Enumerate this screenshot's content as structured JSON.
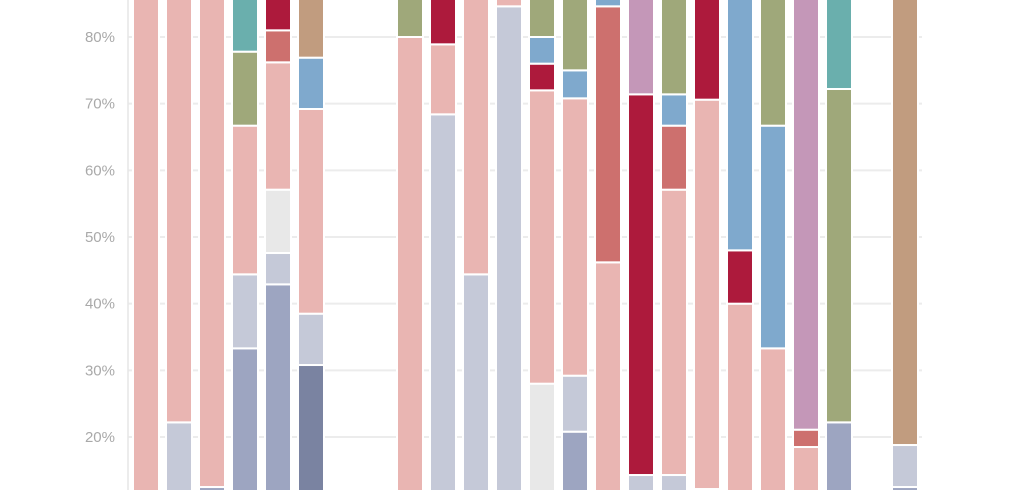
{
  "chart_data": {
    "type": "bar",
    "stacked": true,
    "title": "",
    "xlabel": "",
    "ylabel": "",
    "ylim_visible": [
      12.1,
      85.6
    ],
    "grid": true,
    "y_ticks": [
      {
        "value": 80,
        "label": "80%"
      },
      {
        "value": 70,
        "label": "70%"
      },
      {
        "value": 60,
        "label": "60%"
      },
      {
        "value": 50,
        "label": "50%"
      },
      {
        "value": 40,
        "label": "40%"
      },
      {
        "value": 30,
        "label": "30%"
      },
      {
        "value": 20,
        "label": "20%"
      }
    ],
    "colors": {
      "pink": "#e9b5b2",
      "lavender": "#c5c9d8",
      "bluegray": "#9da5c1",
      "slate": "#7a83a1",
      "teal": "#6aafad",
      "olive": "#9fa87a",
      "crimson": "#ad1a3c",
      "rose": "#cd706e",
      "steelblue": "#7fa9cd",
      "lightgray": "#e8e8e8",
      "mauve": "#c497b8",
      "tan": "#c19c7f"
    },
    "bars": [
      [
        [
          "pink",
          0,
          100
        ]
      ],
      [
        [
          "lavender",
          0,
          22.2
        ],
        [
          "pink",
          22.2,
          100
        ]
      ],
      [
        [
          "bluegray",
          0,
          12.5
        ],
        [
          "pink",
          12.5,
          100
        ]
      ],
      [
        [
          "bluegray",
          0,
          33.3
        ],
        [
          "lavender",
          33.3,
          44.4
        ],
        [
          "pink",
          44.4,
          66.7
        ],
        [
          "olive",
          66.7,
          77.8
        ],
        [
          "teal",
          77.8,
          100
        ]
      ],
      [
        [
          "bluegray",
          0,
          42.9
        ],
        [
          "lavender",
          42.9,
          47.6
        ],
        [
          "lightgray",
          47.6,
          57.1
        ],
        [
          "pink",
          57.1,
          76.2
        ],
        [
          "rose",
          76.2,
          81.0
        ],
        [
          "crimson",
          81.0,
          100
        ]
      ],
      [
        [
          "slate",
          0,
          30.8
        ],
        [
          "lavender",
          30.8,
          38.5
        ],
        [
          "pink",
          38.5,
          69.2
        ],
        [
          "steelblue",
          69.2,
          76.9
        ],
        [
          "tan",
          76.9,
          100
        ]
      ],
      null,
      null,
      [
        [
          "pink",
          0,
          80.0
        ],
        [
          "olive",
          80.0,
          100
        ]
      ],
      [
        [
          "lavender",
          0,
          68.4
        ],
        [
          "pink",
          68.4,
          78.9
        ],
        [
          "crimson",
          78.9,
          100
        ]
      ],
      [
        [
          "lavender",
          0,
          44.4
        ],
        [
          "pink",
          44.4,
          100
        ]
      ],
      [
        [
          "lavender",
          0,
          84.6
        ],
        [
          "pink",
          84.6,
          100
        ]
      ],
      [
        [
          "lightgray",
          0,
          28.0
        ],
        [
          "pink",
          28.0,
          72.0
        ],
        [
          "crimson",
          72.0,
          76.0
        ],
        [
          "steelblue",
          76.0,
          80.0
        ],
        [
          "olive",
          80.0,
          100
        ]
      ],
      [
        [
          "bluegray",
          0,
          20.8
        ],
        [
          "lavender",
          20.8,
          29.2
        ],
        [
          "pink",
          29.2,
          70.8
        ],
        [
          "steelblue",
          70.8,
          75.0
        ],
        [
          "olive",
          75.0,
          100
        ]
      ],
      [
        [
          "pink",
          0,
          46.2
        ],
        [
          "rose",
          46.2,
          84.6
        ],
        [
          "steelblue",
          84.6,
          100
        ]
      ],
      [
        [
          "lavender",
          0,
          14.3
        ],
        [
          "crimson",
          14.3,
          71.4
        ],
        [
          "mauve",
          71.4,
          100
        ]
      ],
      [
        [
          "lavender",
          0,
          14.3
        ],
        [
          "pink",
          14.3,
          57.1
        ],
        [
          "rose",
          57.1,
          66.7
        ],
        [
          "steelblue",
          66.7,
          71.4
        ],
        [
          "olive",
          71.4,
          100
        ]
      ],
      [
        [
          "lavender",
          0,
          12.2
        ],
        [
          "pink",
          12.2,
          70.6
        ],
        [
          "crimson",
          70.6,
          100
        ]
      ],
      [
        [
          "pink",
          0,
          40.0
        ],
        [
          "crimson",
          40.0,
          48.0
        ],
        [
          "steelblue",
          48.0,
          100
        ]
      ],
      [
        [
          "pink",
          0,
          33.3
        ],
        [
          "steelblue",
          33.3,
          66.7
        ],
        [
          "olive",
          66.7,
          100
        ]
      ],
      [
        [
          "pink",
          0,
          18.5
        ],
        [
          "rose",
          18.5,
          21.1
        ],
        [
          "mauve",
          21.1,
          100
        ]
      ],
      [
        [
          "bluegray",
          0,
          22.2
        ],
        [
          "olive",
          22.2,
          72.2
        ],
        [
          "teal",
          72.2,
          100
        ]
      ],
      null,
      [
        [
          "bluegray",
          0,
          12.5
        ],
        [
          "lavender",
          12.5,
          18.8
        ],
        [
          "tan",
          18.8,
          100
        ]
      ]
    ]
  }
}
